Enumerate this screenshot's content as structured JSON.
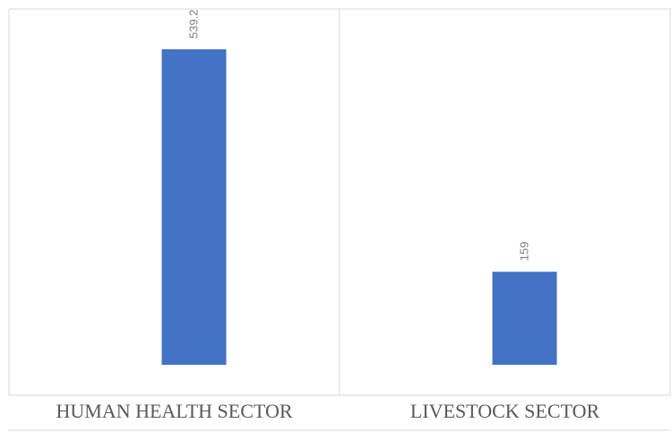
{
  "chart_data": {
    "type": "bar",
    "categories": [
      "HUMAN HEALTH SECTOR",
      "LIVESTOCK SECTOR"
    ],
    "values": [
      539.2,
      159
    ],
    "data_labels": [
      "539.2",
      "159"
    ],
    "ylim": [
      0,
      600
    ],
    "grid": false,
    "legend": "none",
    "bar_color": "#4472c4"
  }
}
